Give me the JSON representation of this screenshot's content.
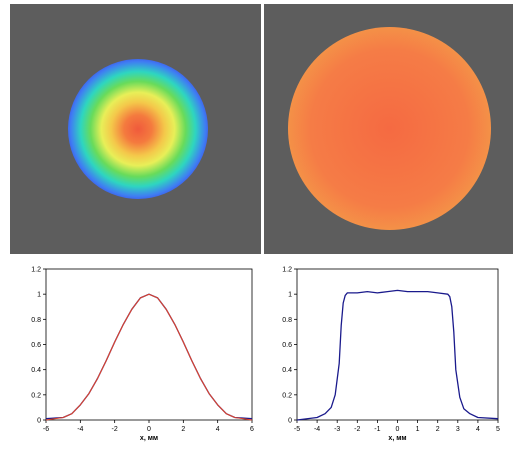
{
  "images": [
    {
      "name": "beam-profile-gaussian",
      "colors": [
        "#f05a3c",
        "#e8ef58",
        "#69db5a",
        "#3f7ef2",
        "#3c2fe6"
      ]
    },
    {
      "name": "beam-profile-flattop",
      "colors": [
        "#f57c46",
        "#e8ef58",
        "#2ad8d0",
        "#3a2ee6"
      ]
    }
  ],
  "chart_data": [
    {
      "type": "line",
      "xlabel": "x, мм",
      "ylabel": "",
      "xlim": [
        -6,
        6
      ],
      "ylim": [
        0,
        1.2
      ],
      "xticks": [
        "-6",
        "-4",
        "-2",
        "0",
        "2",
        "4",
        "6"
      ],
      "yticks": [
        "0",
        "0.2",
        "0.4",
        "0.6",
        "0.8",
        "1",
        "1.2"
      ],
      "grid": false,
      "series": [
        {
          "kind": "measured",
          "color": "#1a1a8c",
          "x": [
            -6,
            -5,
            -4.5,
            -4,
            -3.5,
            -3,
            -2.5,
            -2,
            -1.5,
            -1,
            -0.5,
            0,
            0.5,
            1,
            1.5,
            2,
            2.5,
            3,
            3.5,
            4,
            4.5,
            5,
            6
          ],
          "y": [
            0.01,
            0.02,
            0.05,
            0.12,
            0.21,
            0.33,
            0.47,
            0.62,
            0.76,
            0.88,
            0.97,
            1.0,
            0.97,
            0.88,
            0.76,
            0.62,
            0.47,
            0.33,
            0.21,
            0.12,
            0.05,
            0.02,
            0.01
          ]
        },
        {
          "kind": "fit",
          "color": "#e0442a",
          "x": [
            -6,
            -5,
            -4.5,
            -4,
            -3.5,
            -3,
            -2.5,
            -2,
            -1.5,
            -1,
            -0.5,
            0,
            0.5,
            1,
            1.5,
            2,
            2.5,
            3,
            3.5,
            4,
            4.5,
            5,
            6
          ],
          "y": [
            0.0,
            0.02,
            0.05,
            0.12,
            0.21,
            0.33,
            0.47,
            0.62,
            0.76,
            0.88,
            0.97,
            1.0,
            0.97,
            0.88,
            0.76,
            0.62,
            0.47,
            0.33,
            0.21,
            0.12,
            0.05,
            0.02,
            0.0
          ]
        }
      ]
    },
    {
      "type": "line",
      "xlabel": "x, мм",
      "ylabel": "",
      "xlim": [
        -5,
        5
      ],
      "ylim": [
        0,
        1.2
      ],
      "xticks": [
        "-5",
        "-4",
        "-3",
        "-2",
        "-1",
        "0",
        "1",
        "2",
        "3",
        "4",
        "5"
      ],
      "yticks": [
        "0",
        "0.2",
        "0.4",
        "0.6",
        "0.8",
        "1",
        "1.2"
      ],
      "grid": false,
      "series": [
        {
          "kind": "measured",
          "color": "#1a1a8c",
          "x": [
            -5,
            -4,
            -3.6,
            -3.3,
            -3.1,
            -2.9,
            -2.8,
            -2.7,
            -2.6,
            -2.5,
            -2,
            -1.5,
            -1,
            -0.5,
            0,
            0.5,
            1,
            1.5,
            2,
            2.5,
            2.6,
            2.7,
            2.8,
            2.9,
            3.1,
            3.3,
            3.6,
            4,
            5
          ],
          "y": [
            0.0,
            0.02,
            0.05,
            0.1,
            0.2,
            0.45,
            0.75,
            0.93,
            0.99,
            1.01,
            1.01,
            1.02,
            1.01,
            1.02,
            1.03,
            1.02,
            1.02,
            1.02,
            1.01,
            1.0,
            0.98,
            0.9,
            0.7,
            0.4,
            0.18,
            0.09,
            0.05,
            0.02,
            0.01
          ]
        }
      ]
    }
  ]
}
